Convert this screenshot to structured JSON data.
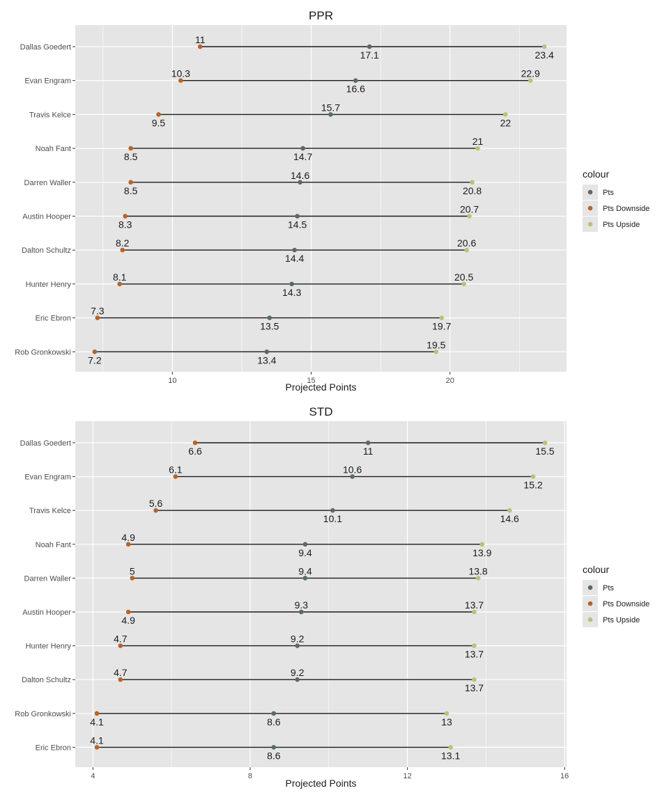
{
  "colors": {
    "panel_bg": "#e5e5e5",
    "grid": "#ffffff",
    "segment": "#1a1a1a",
    "pts": "#5a6b63",
    "pts_downside": "#b8632a",
    "pts_upside": "#bfbf7a"
  },
  "chart_data": [
    {
      "type": "dumbbell",
      "title": "PPR",
      "xlabel": "Projected Points",
      "ylabel": "",
      "xlim": [
        6.5,
        24.2
      ],
      "xticks": [
        10,
        15,
        20
      ],
      "grid": true,
      "legend": {
        "title": "colour",
        "position": "right",
        "entries": [
          "Pts",
          "Pts Downside",
          "Pts Upside"
        ]
      },
      "categories": [
        "Dallas Goedert",
        "Evan Engram",
        "Travis Kelce",
        "Noah Fant",
        "Darren Waller",
        "Austin Hooper",
        "Dalton Schultz",
        "Hunter Henry",
        "Eric Ebron",
        "Rob Gronkowski"
      ],
      "series": [
        {
          "name": "Pts",
          "values": [
            17.1,
            16.6,
            15.7,
            14.7,
            14.6,
            14.5,
            14.4,
            14.3,
            13.5,
            13.4
          ]
        },
        {
          "name": "Pts Downside",
          "values": [
            11,
            10.3,
            9.5,
            8.5,
            8.5,
            8.3,
            8.2,
            8.1,
            7.3,
            7.2
          ]
        },
        {
          "name": "Pts Upside",
          "values": [
            23.4,
            22.9,
            22,
            21,
            20.8,
            20.7,
            20.6,
            20.5,
            19.7,
            19.5
          ]
        }
      ],
      "labels": {
        "Pts": [
          "17.1",
          "16.6",
          "15.7",
          "14.7",
          "14.6",
          "14.5",
          "14.4",
          "14.3",
          "13.5",
          "13.4"
        ],
        "Pts Downside": [
          "11",
          "10.3",
          "9.5",
          "8.5",
          "8.5",
          "8.3",
          "8.2",
          "8.1",
          "7.3",
          "7.2"
        ],
        "Pts Upside": [
          "23.4",
          "22.9",
          "22",
          "21",
          "20.8",
          "20.7",
          "20.6",
          "20.5",
          "19.7",
          "19.5"
        ]
      },
      "label_sides": {
        "Pts": [
          "below",
          "below",
          "above",
          "below",
          "above",
          "below",
          "below",
          "below",
          "below",
          "below"
        ],
        "Pts Downside": [
          "above",
          "above",
          "below",
          "below",
          "below",
          "below",
          "above",
          "above",
          "above",
          "below"
        ],
        "Pts Upside": [
          "below",
          "above",
          "below",
          "above",
          "below",
          "above",
          "above",
          "above",
          "below",
          "above"
        ]
      }
    },
    {
      "type": "dumbbell",
      "title": "STD",
      "xlabel": "Projected Points",
      "ylabel": "",
      "xlim": [
        3.55,
        16.05
      ],
      "xticks": [
        4,
        8,
        12,
        16
      ],
      "grid": true,
      "legend": {
        "title": "colour",
        "position": "right",
        "entries": [
          "Pts",
          "Pts Downside",
          "Pts Upside"
        ]
      },
      "categories": [
        "Dallas Goedert",
        "Evan Engram",
        "Travis Kelce",
        "Noah Fant",
        "Darren Waller",
        "Austin Hooper",
        "Hunter Henry",
        "Dalton Schultz",
        "Rob Gronkowski",
        "Eric Ebron"
      ],
      "series": [
        {
          "name": "Pts",
          "values": [
            11,
            10.6,
            10.1,
            9.4,
            9.4,
            9.3,
            9.2,
            9.2,
            8.6,
            8.6
          ]
        },
        {
          "name": "Pts Downside",
          "values": [
            6.6,
            6.1,
            5.6,
            4.9,
            5,
            4.9,
            4.7,
            4.7,
            4.1,
            4.1
          ]
        },
        {
          "name": "Pts Upside",
          "values": [
            15.5,
            15.2,
            14.6,
            13.9,
            13.8,
            13.7,
            13.7,
            13.7,
            13,
            13.1
          ]
        }
      ],
      "labels": {
        "Pts": [
          "11",
          "10.6",
          "10.1",
          "9.4",
          "9.4",
          "9.3",
          "9.2",
          "9.2",
          "8.6",
          "8.6"
        ],
        "Pts Downside": [
          "6.6",
          "6.1",
          "5.6",
          "4.9",
          "5",
          "4.9",
          "4.7",
          "4.7",
          "4.1",
          "4.1"
        ],
        "Pts Upside": [
          "15.5",
          "15.2",
          "14.6",
          "13.9",
          "13.8",
          "13.7",
          "13.7",
          "13.7",
          "13",
          "13.1"
        ]
      },
      "label_sides": {
        "Pts": [
          "below",
          "above",
          "below",
          "below",
          "above",
          "above",
          "above",
          "above",
          "below",
          "below"
        ],
        "Pts Downside": [
          "below",
          "above",
          "above",
          "above",
          "above",
          "below",
          "above",
          "above",
          "below",
          "above"
        ],
        "Pts Upside": [
          "below",
          "below",
          "below",
          "below",
          "above",
          "above",
          "below",
          "below",
          "below",
          "below"
        ]
      }
    }
  ]
}
